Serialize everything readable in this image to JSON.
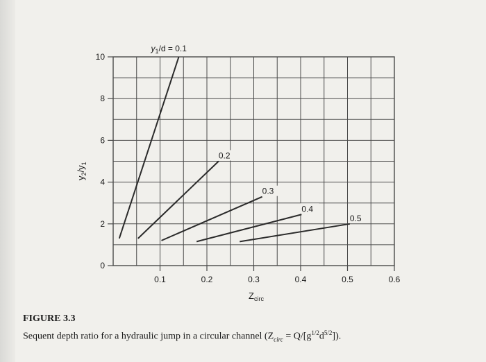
{
  "chart_data": {
    "type": "line",
    "title": "",
    "xlabel": "Z",
    "xlabel_sub": "circ",
    "ylabel": "y",
    "ylabel_sub1": "2",
    "ylabel_sep": "/y",
    "ylabel_sub2": "1",
    "xlim": [
      0,
      0.6
    ],
    "ylim": [
      0,
      10
    ],
    "x_ticks": [
      0.1,
      0.2,
      0.3,
      0.4,
      0.5,
      0.6
    ],
    "x_tick_labels": [
      "0.1",
      "0.2",
      "0.3",
      "0.4",
      "0.5",
      "0.6"
    ],
    "y_ticks": [
      0,
      2,
      4,
      6,
      8,
      10
    ],
    "y_tick_labels": [
      "0",
      "2",
      "4",
      "6",
      "8",
      "10"
    ],
    "grid": true,
    "series": [
      {
        "name": "y1/d = 0.1",
        "label_prefix": "y",
        "label_sub": "1",
        "label_rest": "/d = 0.1",
        "x": [
          0.013,
          0.14
        ],
        "y": [
          1.3,
          10.0
        ]
      },
      {
        "name": "0.2",
        "x": [
          0.053,
          0.225
        ],
        "y": [
          1.3,
          5.0
        ]
      },
      {
        "name": "0.3",
        "x": [
          0.103,
          0.318
        ],
        "y": [
          1.2,
          3.3
        ]
      },
      {
        "name": "0.4",
        "x": [
          0.178,
          0.402
        ],
        "y": [
          1.15,
          2.45
        ]
      },
      {
        "name": "0.5",
        "x": [
          0.27,
          0.505
        ],
        "y": [
          1.15,
          2.0
        ]
      }
    ]
  },
  "caption": {
    "figure_number": "FIGURE 3.3",
    "text": "Sequent depth ratio for a hydraulic jump in a circular channel (Z",
    "text_sub": "circ",
    "text_mid": " = Q/[g",
    "text_sup1": "1/2",
    "text_d": "d",
    "text_sup2": "5/2",
    "text_end": "])."
  },
  "colors": {
    "line": "#2b2b2b",
    "grid": "#4a4a4a",
    "paper": "#f1f0ec"
  }
}
